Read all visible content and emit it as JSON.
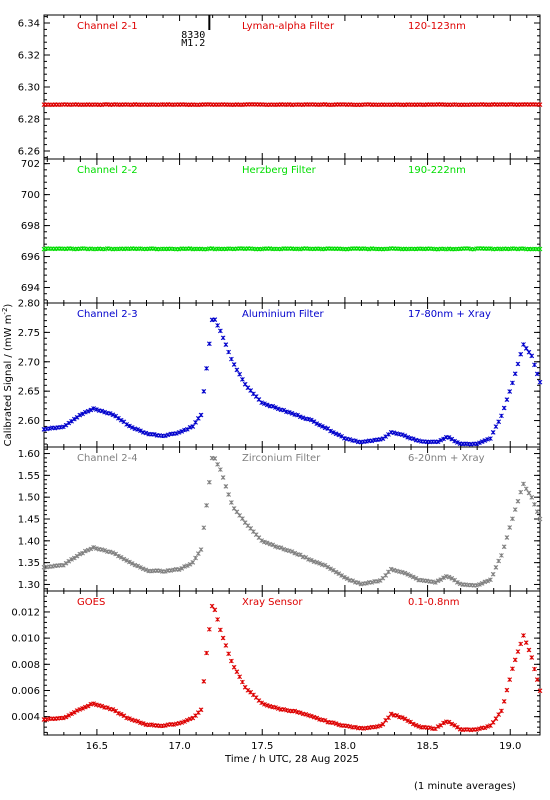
{
  "chart_data": [
    {
      "type": "scatter",
      "channel_label": "Channel 2-1",
      "filter_label": "Lyman-alpha Filter",
      "range_label": "120-123nm",
      "color": "#dd0000",
      "ylim": [
        6.255,
        6.345
      ],
      "yticks": [
        "6.26",
        "6.28",
        "6.30",
        "6.32",
        "6.34"
      ],
      "shape": "flat",
      "flat_value": 6.289,
      "noise": 0.0003
    },
    {
      "type": "scatter",
      "channel_label": "Channel 2-2",
      "filter_label": "Herzberg Filter",
      "range_label": "190-222nm",
      "color": "#00dd00",
      "ylim": [
        693,
        702.3
      ],
      "yticks": [
        "694",
        "696",
        "698",
        "700",
        "702"
      ],
      "shape": "flat",
      "flat_value": 696.5,
      "noise": 0.05
    },
    {
      "type": "scatter",
      "channel_label": "Channel 2-3",
      "filter_label": "Aluminium Filter",
      "range_label": "17-80nm + Xray",
      "color": "#0000cc",
      "ylim": [
        2.555,
        2.8
      ],
      "yticks": [
        "2.60",
        "2.65",
        "2.70",
        "2.75",
        "2.80"
      ],
      "shape": "profile",
      "points": [
        [
          16.18,
          2.585
        ],
        [
          16.3,
          2.59
        ],
        [
          16.4,
          2.61
        ],
        [
          16.48,
          2.62
        ],
        [
          16.6,
          2.61
        ],
        [
          16.7,
          2.59
        ],
        [
          16.8,
          2.578
        ],
        [
          16.9,
          2.574
        ],
        [
          17.0,
          2.58
        ],
        [
          17.08,
          2.59
        ],
        [
          17.13,
          2.61
        ],
        [
          17.16,
          2.68
        ],
        [
          17.2,
          2.78
        ],
        [
          17.25,
          2.75
        ],
        [
          17.32,
          2.7
        ],
        [
          17.4,
          2.66
        ],
        [
          17.5,
          2.63
        ],
        [
          17.6,
          2.62
        ],
        [
          17.7,
          2.61
        ],
        [
          17.8,
          2.6
        ],
        [
          17.9,
          2.585
        ],
        [
          18.0,
          2.57
        ],
        [
          18.1,
          2.563
        ],
        [
          18.22,
          2.568
        ],
        [
          18.28,
          2.58
        ],
        [
          18.35,
          2.575
        ],
        [
          18.45,
          2.565
        ],
        [
          18.55,
          2.563
        ],
        [
          18.62,
          2.572
        ],
        [
          18.7,
          2.56
        ],
        [
          18.8,
          2.56
        ],
        [
          18.88,
          2.57
        ],
        [
          18.95,
          2.61
        ],
        [
          19.02,
          2.67
        ],
        [
          19.08,
          2.73
        ],
        [
          19.13,
          2.71
        ],
        [
          19.18,
          2.665
        ]
      ]
    },
    {
      "type": "scatter",
      "channel_label": "Channel 2-4",
      "filter_label": "Zirconium Filter",
      "range_label": "6-20nm + Xray",
      "color": "#808080",
      "ylim": [
        1.285,
        1.615
      ],
      "yticks": [
        "1.30",
        "1.35",
        "1.40",
        "1.45",
        "1.50",
        "1.55",
        "1.60"
      ],
      "shape": "profile",
      "points": [
        [
          16.18,
          1.34
        ],
        [
          16.3,
          1.345
        ],
        [
          16.4,
          1.37
        ],
        [
          16.48,
          1.385
        ],
        [
          16.6,
          1.372
        ],
        [
          16.7,
          1.35
        ],
        [
          16.8,
          1.332
        ],
        [
          16.9,
          1.33
        ],
        [
          17.0,
          1.335
        ],
        [
          17.08,
          1.35
        ],
        [
          17.13,
          1.38
        ],
        [
          17.16,
          1.47
        ],
        [
          17.2,
          1.6
        ],
        [
          17.25,
          1.56
        ],
        [
          17.32,
          1.48
        ],
        [
          17.4,
          1.44
        ],
        [
          17.5,
          1.4
        ],
        [
          17.6,
          1.385
        ],
        [
          17.7,
          1.372
        ],
        [
          17.8,
          1.355
        ],
        [
          17.9,
          1.34
        ],
        [
          18.0,
          1.315
        ],
        [
          18.1,
          1.3
        ],
        [
          18.22,
          1.31
        ],
        [
          18.28,
          1.335
        ],
        [
          18.35,
          1.328
        ],
        [
          18.45,
          1.31
        ],
        [
          18.55,
          1.305
        ],
        [
          18.62,
          1.32
        ],
        [
          18.7,
          1.3
        ],
        [
          18.8,
          1.298
        ],
        [
          18.88,
          1.31
        ],
        [
          18.95,
          1.37
        ],
        [
          19.02,
          1.46
        ],
        [
          19.08,
          1.53
        ],
        [
          19.13,
          1.5
        ],
        [
          19.18,
          1.45
        ]
      ]
    },
    {
      "type": "scatter",
      "channel_label": "GOES",
      "filter_label": "Xray Sensor",
      "range_label": "0.1-0.8nm",
      "color": "#dd0000",
      "ylim": [
        0.0026,
        0.0136
      ],
      "yticks": [
        "0.004",
        "0.006",
        "0.008",
        "0.010",
        "0.012"
      ],
      "shape": "profile",
      "points": [
        [
          16.18,
          0.0038
        ],
        [
          16.3,
          0.0039
        ],
        [
          16.4,
          0.0046
        ],
        [
          16.48,
          0.005
        ],
        [
          16.6,
          0.0045
        ],
        [
          16.7,
          0.0038
        ],
        [
          16.8,
          0.0034
        ],
        [
          16.9,
          0.0033
        ],
        [
          17.0,
          0.0035
        ],
        [
          17.08,
          0.0039
        ],
        [
          17.13,
          0.0045
        ],
        [
          17.16,
          0.0085
        ],
        [
          17.2,
          0.0128
        ],
        [
          17.25,
          0.0105
        ],
        [
          17.32,
          0.008
        ],
        [
          17.4,
          0.0062
        ],
        [
          17.5,
          0.005
        ],
        [
          17.6,
          0.0046
        ],
        [
          17.7,
          0.0044
        ],
        [
          17.8,
          0.004
        ],
        [
          17.9,
          0.0036
        ],
        [
          18.0,
          0.0033
        ],
        [
          18.1,
          0.0031
        ],
        [
          18.22,
          0.0033
        ],
        [
          18.28,
          0.0042
        ],
        [
          18.35,
          0.0039
        ],
        [
          18.45,
          0.0032
        ],
        [
          18.55,
          0.0031
        ],
        [
          18.62,
          0.0037
        ],
        [
          18.7,
          0.003
        ],
        [
          18.8,
          0.003
        ],
        [
          18.88,
          0.0033
        ],
        [
          18.95,
          0.0045
        ],
        [
          19.02,
          0.008
        ],
        [
          19.08,
          0.0102
        ],
        [
          19.13,
          0.0085
        ],
        [
          19.18,
          0.006
        ]
      ]
    }
  ],
  "x_axis": {
    "xlim": [
      16.18,
      19.18
    ],
    "ticks": [
      16.5,
      17.0,
      17.5,
      18.0,
      18.5,
      19.0
    ],
    "tick_labels": [
      "16.5",
      "17.0",
      "17.5",
      "18.0",
      "18.5",
      "19.0"
    ],
    "label": "Time / h UTC, 28 Aug 2025"
  },
  "y_axis_label": "Calibrated Signal / (mW m",
  "y_axis_label_sup": "-2",
  "y_axis_label_end": ")",
  "marker": {
    "time": 17.18,
    "lines": [
      "8330",
      "M1.2"
    ]
  },
  "footnote": "(1 minute averages)"
}
